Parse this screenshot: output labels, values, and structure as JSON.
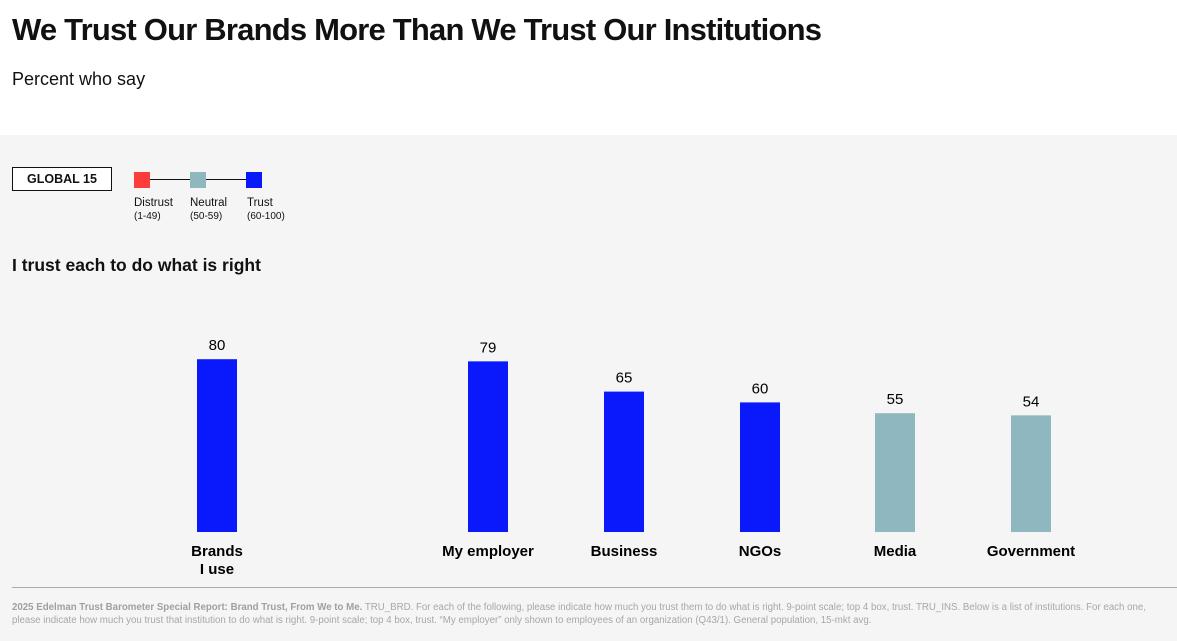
{
  "header": {
    "title": "We Trust Our Brands More Than We Trust Our Institutions",
    "subtitle": "Percent who say"
  },
  "region_tag": "GLOBAL 15",
  "legend": [
    {
      "label": "Distrust",
      "range": "(1-49)",
      "color": "#fc3b3b"
    },
    {
      "label": "Neutral",
      "range": "(50-59)",
      "color": "#8fb7bf"
    },
    {
      "label": "Trust",
      "range": "(60-100)",
      "color": "#0a19fc"
    }
  ],
  "chart_data": {
    "type": "bar",
    "title": "I trust each to do what is right",
    "categories": [
      "Brands\nI use",
      "My employer",
      "Business",
      "NGOs",
      "Media",
      "Government"
    ],
    "values": [
      80,
      79,
      65,
      60,
      55,
      54
    ],
    "colors": [
      "#0a19fc",
      "#0a19fc",
      "#0a19fc",
      "#0a19fc",
      "#8fb7bf",
      "#8fb7bf"
    ],
    "ylim": [
      0,
      100
    ],
    "xlabel": "",
    "ylabel": ""
  },
  "footnote": {
    "source": "2025 Edelman Trust Barometer Special Report: Brand Trust, From We to Me.",
    "text": "TRU_BRD. For each of the following, please indicate how much you trust them to do what is right. 9-point scale; top 4 box, trust. TRU_INS. Below is a list of institutions. For each one, please indicate how much you trust that institution to do what is right. 9-point scale; top 4 box, trust. “My employer” only shown to employees of an organization (Q43/1). General population, 15-mkt avg."
  }
}
